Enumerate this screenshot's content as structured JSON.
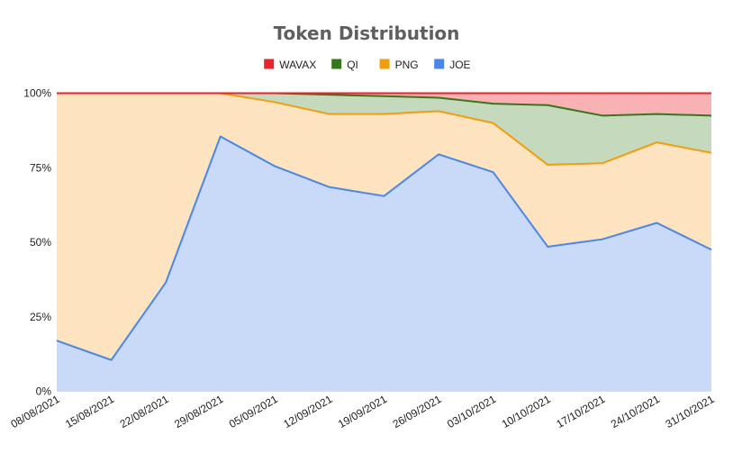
{
  "chart_data": {
    "type": "area",
    "stacked": "percent",
    "title": "Token Distribution",
    "categories": [
      "08/08/2021",
      "15/08/2021",
      "22/08/2021",
      "29/08/2021",
      "05/09/2021",
      "12/09/2021",
      "19/09/2021",
      "26/09/2021",
      "03/10/2021",
      "10/10/2021",
      "17/10/2021",
      "24/10/2021",
      "31/10/2021"
    ],
    "y_ticks": [
      "0%",
      "25%",
      "50%",
      "75%",
      "100%"
    ],
    "ylim": [
      0,
      100
    ],
    "grid": true,
    "legend_position": "top",
    "series": [
      {
        "name": "JOE",
        "color": "#4a86e8",
        "fill": "#c9daf8",
        "values": [
          17,
          10.5,
          36.5,
          85.5,
          75.5,
          68.5,
          65.5,
          79.5,
          73.5,
          48.5,
          51,
          56.5,
          47.5
        ]
      },
      {
        "name": "PNG",
        "color": "#f29c0f",
        "fill": "#fde3bf",
        "values": [
          83,
          89.5,
          63.5,
          14.5,
          21.5,
          24.5,
          27.5,
          14.5,
          16.5,
          27.5,
          25.5,
          27,
          32.5
        ]
      },
      {
        "name": "QI",
        "color": "#38761d",
        "fill": "#c5d9bd",
        "values": [
          0,
          0,
          0,
          0,
          3,
          6.5,
          6,
          4.5,
          6.5,
          20,
          16,
          9.5,
          12.5
        ]
      },
      {
        "name": "WAVAX",
        "color": "#e8242a",
        "fill": "#f8b2b4",
        "values": [
          0,
          0,
          0,
          0,
          0,
          0.5,
          1,
          1.5,
          3.5,
          4,
          7.5,
          7,
          7.5
        ]
      }
    ],
    "legend_order": [
      "WAVAX",
      "QI",
      "PNG",
      "JOE"
    ]
  }
}
